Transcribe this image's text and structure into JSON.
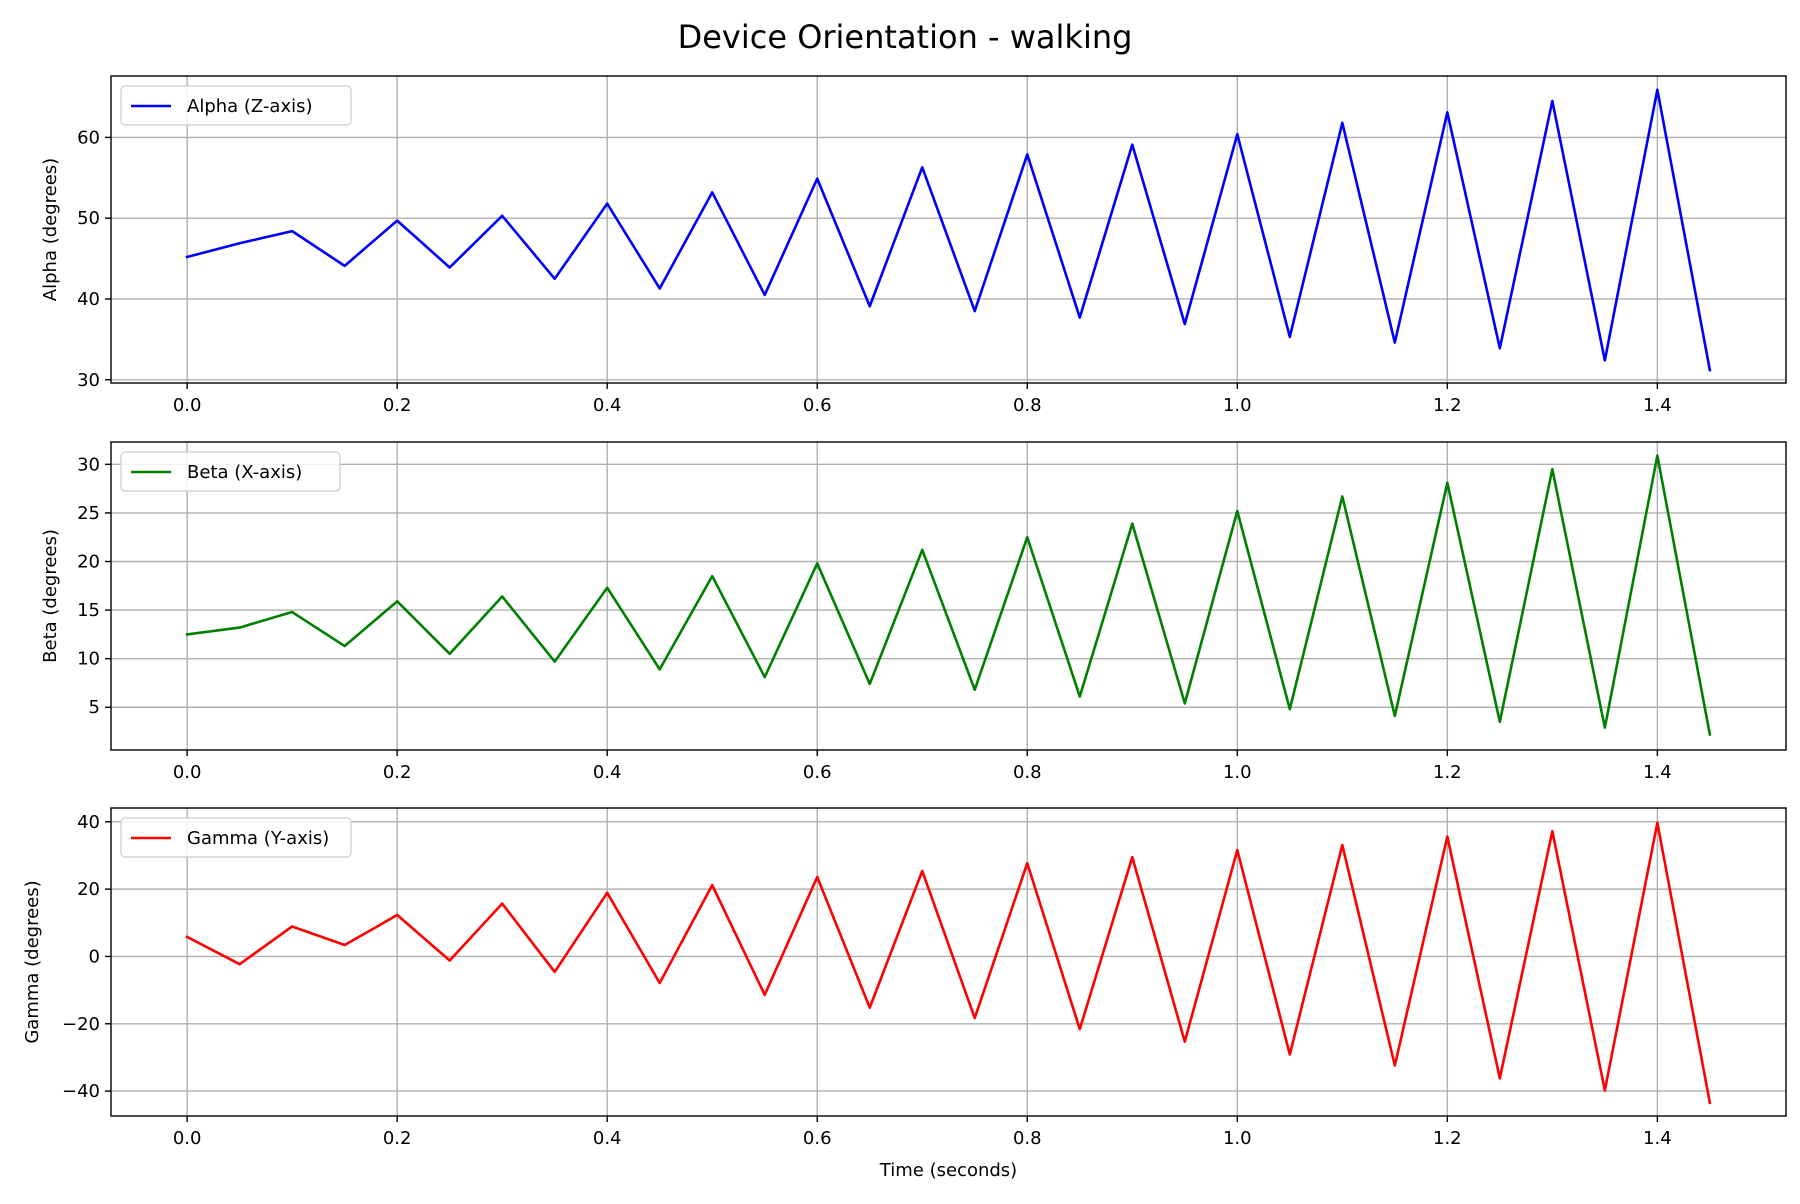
{
  "title": "Device Orientation - walking",
  "chart_data": [
    {
      "type": "line",
      "title": "Device Orientation - walking",
      "xlabel": "",
      "ylabel": "Alpha (degrees)",
      "xlim": [
        -0.0725,
        1.5225
      ],
      "ylim": [
        29.6,
        67.6
      ],
      "xticks": [
        0.0,
        0.2,
        0.4,
        0.6,
        0.8,
        1.0,
        1.2,
        1.4
      ],
      "xtick_labels": [
        "0.0",
        "0.2",
        "0.4",
        "0.6",
        "0.8",
        "1.0",
        "1.2",
        "1.4"
      ],
      "yticks": [
        30,
        40,
        50,
        60
      ],
      "ytick_labels": [
        "30",
        "40",
        "50",
        "60"
      ],
      "grid": true,
      "legend": "upper-left",
      "series": [
        {
          "name": "Alpha (Z-axis)",
          "color": "#0000ff",
          "x": [
            0.0,
            0.05,
            0.1,
            0.15,
            0.2,
            0.25,
            0.3,
            0.35,
            0.4,
            0.45,
            0.5,
            0.55,
            0.6,
            0.65,
            0.7,
            0.75,
            0.8,
            0.85,
            0.9,
            0.95,
            1.0,
            1.05,
            1.1,
            1.15,
            1.2,
            1.25,
            1.3,
            1.35,
            1.4,
            1.45
          ],
          "values": [
            45.2,
            46.9,
            48.4,
            44.1,
            49.7,
            43.9,
            50.3,
            42.5,
            51.8,
            41.3,
            53.2,
            40.5,
            54.9,
            39.1,
            56.3,
            38.5,
            57.9,
            37.7,
            59.1,
            36.9,
            60.4,
            35.3,
            61.8,
            34.6,
            63.1,
            33.9,
            64.5,
            32.4,
            65.9,
            31.2
          ]
        }
      ]
    },
    {
      "type": "line",
      "xlabel": "",
      "ylabel": "Beta (degrees)",
      "xlim": [
        -0.0725,
        1.5225
      ],
      "ylim": [
        0.6,
        32.3
      ],
      "xticks": [
        0.0,
        0.2,
        0.4,
        0.6,
        0.8,
        1.0,
        1.2,
        1.4
      ],
      "xtick_labels": [
        "0.0",
        "0.2",
        "0.4",
        "0.6",
        "0.8",
        "1.0",
        "1.2",
        "1.4"
      ],
      "yticks": [
        5,
        10,
        15,
        20,
        25,
        30
      ],
      "ytick_labels": [
        "5",
        "10",
        "15",
        "20",
        "25",
        "30"
      ],
      "grid": true,
      "legend": "upper-left",
      "series": [
        {
          "name": "Beta (X-axis)",
          "color": "#008000",
          "x": [
            0.0,
            0.05,
            0.1,
            0.15,
            0.2,
            0.25,
            0.3,
            0.35,
            0.4,
            0.45,
            0.5,
            0.55,
            0.6,
            0.65,
            0.7,
            0.75,
            0.8,
            0.85,
            0.9,
            0.95,
            1.0,
            1.05,
            1.1,
            1.15,
            1.2,
            1.25,
            1.3,
            1.35,
            1.4,
            1.45
          ],
          "values": [
            12.5,
            13.2,
            14.8,
            11.3,
            15.9,
            10.5,
            16.4,
            9.7,
            17.3,
            8.9,
            18.5,
            8.1,
            19.8,
            7.4,
            21.2,
            6.8,
            22.5,
            6.1,
            23.9,
            5.4,
            25.2,
            4.8,
            26.7,
            4.1,
            28.1,
            3.5,
            29.5,
            2.9,
            30.9,
            2.2
          ]
        }
      ]
    },
    {
      "type": "line",
      "xlabel": "Time (seconds)",
      "ylabel": "Gamma (degrees)",
      "xlim": [
        -0.0725,
        1.5225
      ],
      "ylim": [
        -47.4,
        44.1
      ],
      "xticks": [
        0.0,
        0.2,
        0.4,
        0.6,
        0.8,
        1.0,
        1.2,
        1.4
      ],
      "xtick_labels": [
        "0.0",
        "0.2",
        "0.4",
        "0.6",
        "0.8",
        "1.0",
        "1.2",
        "1.4"
      ],
      "yticks": [
        -40,
        -20,
        0,
        20,
        40
      ],
      "ytick_labels": [
        "−40",
        "−20",
        "0",
        "20",
        "40"
      ],
      "grid": true,
      "legend": "upper-left",
      "series": [
        {
          "name": "Gamma (Y-axis)",
          "color": "#ff0000",
          "x": [
            0.0,
            0.05,
            0.1,
            0.15,
            0.2,
            0.25,
            0.3,
            0.35,
            0.4,
            0.45,
            0.5,
            0.55,
            0.6,
            0.65,
            0.7,
            0.75,
            0.8,
            0.85,
            0.9,
            0.95,
            1.0,
            1.05,
            1.1,
            1.15,
            1.2,
            1.25,
            1.3,
            1.35,
            1.4,
            1.45
          ],
          "values": [
            5.8,
            -2.3,
            8.9,
            3.4,
            12.3,
            -1.2,
            15.7,
            -4.6,
            18.9,
            -7.9,
            21.2,
            -11.4,
            23.6,
            -15.2,
            25.4,
            -18.3,
            27.7,
            -21.6,
            29.5,
            -25.3,
            31.6,
            -29.1,
            33.1,
            -32.4,
            35.6,
            -36.2,
            37.2,
            -39.8,
            39.7,
            -43.5
          ]
        }
      ]
    }
  ]
}
